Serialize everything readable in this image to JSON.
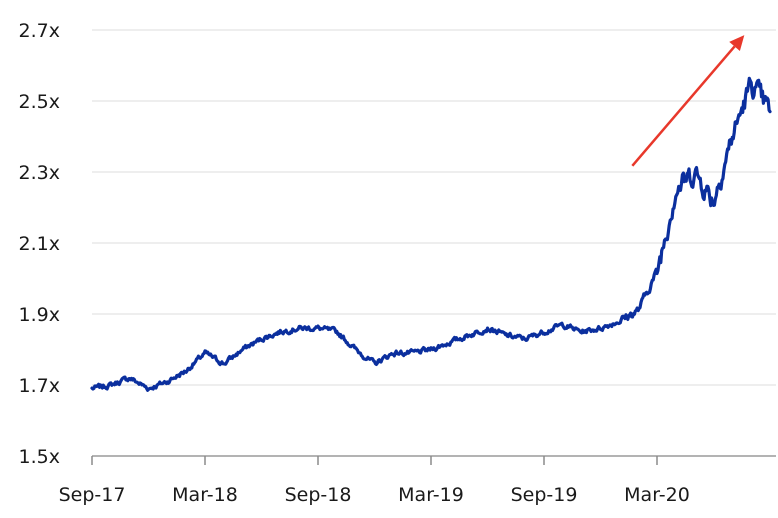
{
  "chart_data": {
    "type": "line",
    "title": "",
    "xlabel": "",
    "ylabel": "",
    "ylim": [
      1.5,
      2.7
    ],
    "y_ticks": [
      1.5,
      1.7,
      1.9,
      2.1,
      2.3,
      2.5,
      2.7
    ],
    "y_tick_labels": [
      "1.5x",
      "1.7x",
      "1.9x",
      "2.1x",
      "2.3x",
      "2.5x",
      "2.7x"
    ],
    "x_tick_labels": [
      "Sep-17",
      "Mar-18",
      "Sep-18",
      "Mar-19",
      "Sep-19",
      "Mar-20"
    ],
    "x_tick_dates": [
      "2017-09",
      "2018-03",
      "2018-09",
      "2019-03",
      "2019-09",
      "2020-03"
    ],
    "xlim": [
      "2017-09",
      "2020-09"
    ],
    "grid": "horizontal",
    "legend": "none",
    "annotation": "upward-trend-arrow",
    "series": [
      {
        "color": "#0b2f9e",
        "x": [
          "2017-09",
          "2017-10",
          "2017-11",
          "2017-12",
          "2018-01",
          "2018-02",
          "2018-03",
          "2018-04",
          "2018-05",
          "2018-06",
          "2018-07",
          "2018-08",
          "2018-09",
          "2018-10",
          "2018-11",
          "2018-12",
          "2019-01",
          "2019-02",
          "2019-03",
          "2019-04",
          "2019-05",
          "2019-06",
          "2019-07",
          "2019-08",
          "2019-09",
          "2019-10",
          "2019-11",
          "2019-12",
          "2020-01",
          "2020-02",
          "2020-03",
          "2020-04",
          "2020-05",
          "2020-06",
          "2020-07",
          "2020-08",
          "2020-09"
        ],
        "y": [
          1.69,
          1.7,
          1.72,
          1.69,
          1.71,
          1.74,
          1.79,
          1.76,
          1.8,
          1.83,
          1.85,
          1.86,
          1.86,
          1.85,
          1.8,
          1.76,
          1.79,
          1.79,
          1.8,
          1.82,
          1.84,
          1.86,
          1.84,
          1.83,
          1.85,
          1.87,
          1.85,
          1.86,
          1.88,
          1.91,
          2.02,
          2.25,
          2.3,
          2.22,
          2.4,
          2.55,
          2.47
        ]
      }
    ],
    "arrow": {
      "from": [
        "2020-01",
        2.34
      ],
      "to": [
        "2020-07",
        2.68
      ]
    }
  }
}
